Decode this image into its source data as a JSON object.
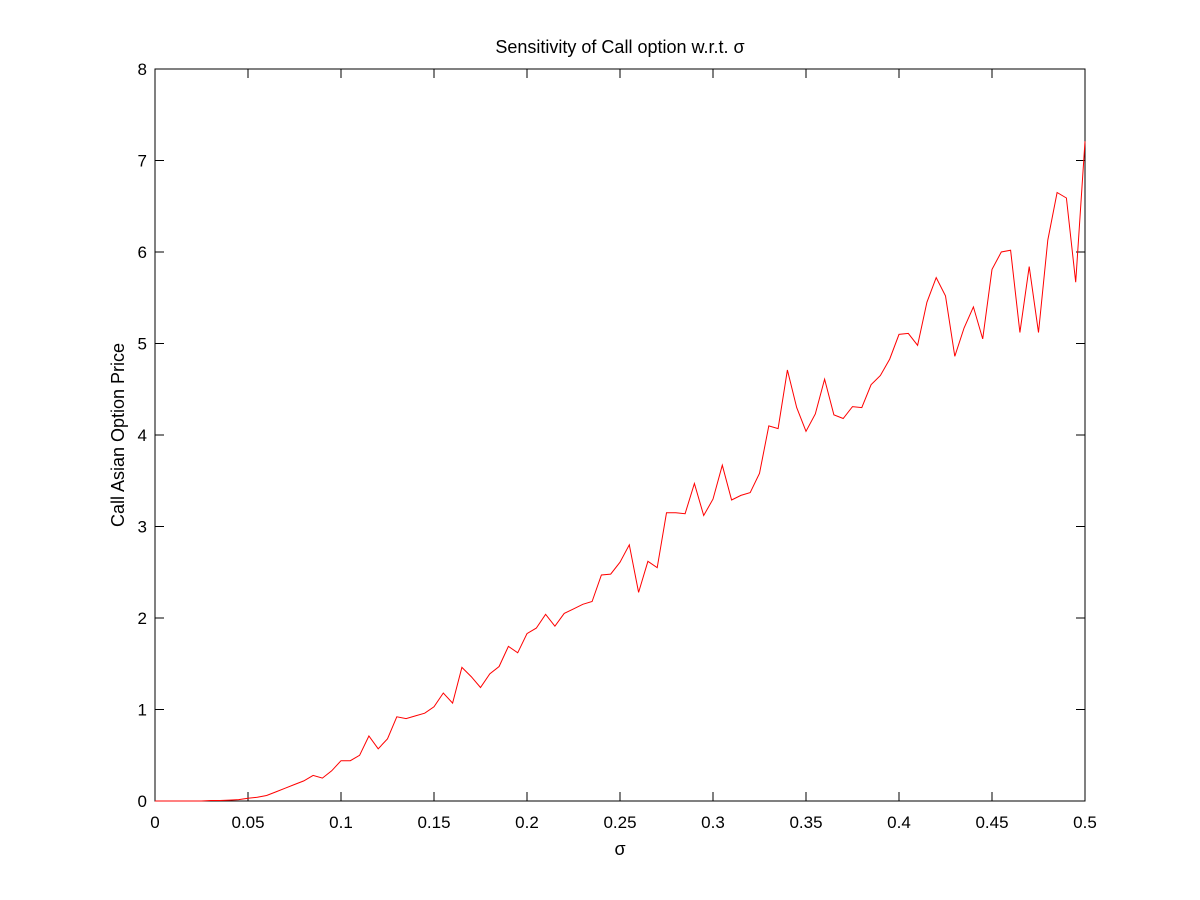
{
  "chart_data": {
    "type": "line",
    "title": "Sensitivity of Call option w.r.t. σ",
    "xlabel": "σ",
    "ylabel": "Call Asian Option Price",
    "xlim": [
      0,
      0.5
    ],
    "ylim": [
      0,
      8
    ],
    "grid": false,
    "line_color": "#ff0000",
    "x_ticks": [
      "0",
      "0.05",
      "0.1",
      "0.15",
      "0.2",
      "0.25",
      "0.3",
      "0.35",
      "0.4",
      "0.45",
      "0.5"
    ],
    "y_ticks": [
      "0",
      "1",
      "2",
      "3",
      "4",
      "5",
      "6",
      "7",
      "8"
    ],
    "series": [
      {
        "x": [
          0,
          0.005,
          0.01,
          0.015,
          0.02,
          0.025,
          0.03,
          0.035,
          0.04,
          0.045,
          0.05,
          0.055,
          0.06,
          0.065,
          0.07,
          0.075,
          0.08,
          0.085,
          0.09,
          0.095,
          0.1,
          0.105,
          0.11,
          0.115,
          0.12,
          0.125,
          0.13,
          0.135,
          0.14,
          0.145,
          0.15,
          0.155,
          0.16,
          0.165,
          0.17,
          0.175,
          0.18,
          0.185,
          0.19,
          0.195,
          0.2,
          0.205,
          0.21,
          0.215,
          0.22,
          0.225,
          0.23,
          0.235,
          0.24,
          0.245,
          0.25,
          0.255,
          0.26,
          0.265,
          0.27,
          0.275,
          0.28,
          0.285,
          0.29,
          0.295,
          0.3,
          0.305,
          0.31,
          0.315,
          0.32,
          0.325,
          0.33,
          0.335,
          0.34,
          0.345,
          0.35,
          0.355,
          0.36,
          0.365,
          0.37,
          0.375,
          0.38,
          0.385,
          0.39,
          0.395,
          0.4,
          0.405,
          0.41,
          0.415,
          0.42,
          0.425,
          0.43,
          0.435,
          0.44,
          0.445,
          0.45,
          0.455,
          0.46,
          0.465,
          0.47,
          0.475,
          0.48,
          0.485,
          0.49,
          0.495,
          0.5
        ],
        "values": [
          0.0,
          0.0,
          0.0,
          0.0,
          0.0,
          0.0,
          0.005,
          0.005,
          0.01,
          0.015,
          0.03,
          0.04,
          0.06,
          0.1,
          0.14,
          0.18,
          0.22,
          0.28,
          0.25,
          0.33,
          0.44,
          0.44,
          0.5,
          0.71,
          0.57,
          0.68,
          0.92,
          0.9,
          0.93,
          0.96,
          1.03,
          1.18,
          1.07,
          1.46,
          1.36,
          1.24,
          1.39,
          1.47,
          1.69,
          1.62,
          1.83,
          1.89,
          2.04,
          1.91,
          2.05,
          2.1,
          2.15,
          2.18,
          2.47,
          2.48,
          2.61,
          2.8,
          2.28,
          2.62,
          2.55,
          3.15,
          3.15,
          3.14,
          3.47,
          3.12,
          3.3,
          3.67,
          3.29,
          3.34,
          3.37,
          3.58,
          4.1,
          4.07,
          4.71,
          4.3,
          4.04,
          4.23,
          4.61,
          4.22,
          4.18,
          4.31,
          4.3,
          4.55,
          4.65,
          4.83,
          5.1,
          5.11,
          4.98,
          5.45,
          5.72,
          5.52,
          4.86,
          5.17,
          5.4,
          5.05,
          5.81,
          6.0,
          6.02,
          5.12,
          5.84,
          5.12,
          6.13,
          6.65,
          6.59,
          5.67,
          7.21
        ]
      }
    ]
  }
}
